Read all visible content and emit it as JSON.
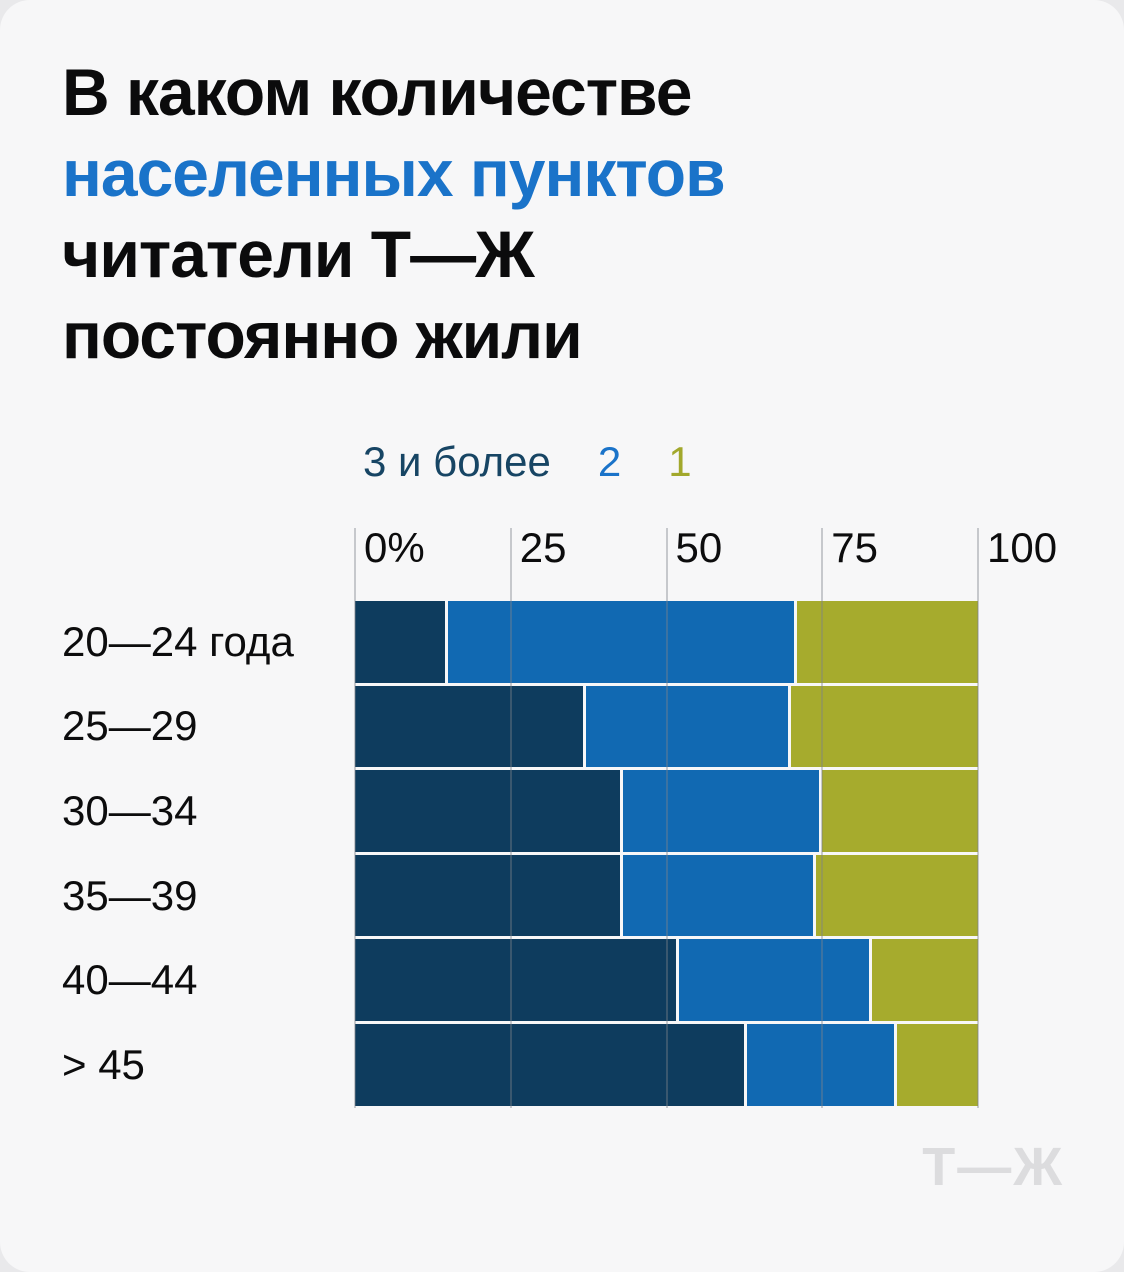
{
  "card": {
    "title": {
      "line1": "В каком количестве",
      "accent": "населенных пунктов",
      "line3": "читатели Т—Ж",
      "line4": "постоянно жили",
      "accent_color": "#1a73c9"
    },
    "watermark": "Т—Ж",
    "background": "#f7f7f8",
    "page_background": "#e9e9eb"
  },
  "chart_data": {
    "type": "bar",
    "orientation": "horizontal",
    "stacked": true,
    "unit": "%",
    "categories": [
      "20—24 года",
      "25—29",
      "30—34",
      "35—39",
      "40—44",
      "> 45"
    ],
    "series": [
      {
        "name": "3 и более",
        "color": "#0e3c5e",
        "values": [
          15,
          37,
          43,
          43,
          52,
          63
        ]
      },
      {
        "name": "2",
        "color": "#1169b2",
        "values": [
          56,
          33,
          32,
          31,
          31,
          24
        ]
      },
      {
        "name": "1",
        "color": "#a6ab2d",
        "values": [
          29,
          30,
          25,
          26,
          17,
          13
        ]
      }
    ],
    "x_axis": {
      "tick_labels": [
        "0%",
        "25",
        "50",
        "75",
        "100"
      ],
      "tick_values": [
        0,
        25,
        50,
        75,
        100
      ],
      "range": [
        0,
        100
      ],
      "gridlines": true
    },
    "legend": {
      "position": "top",
      "colors": [
        "#174564",
        "#1a73c9",
        "#a2a82c"
      ]
    }
  }
}
